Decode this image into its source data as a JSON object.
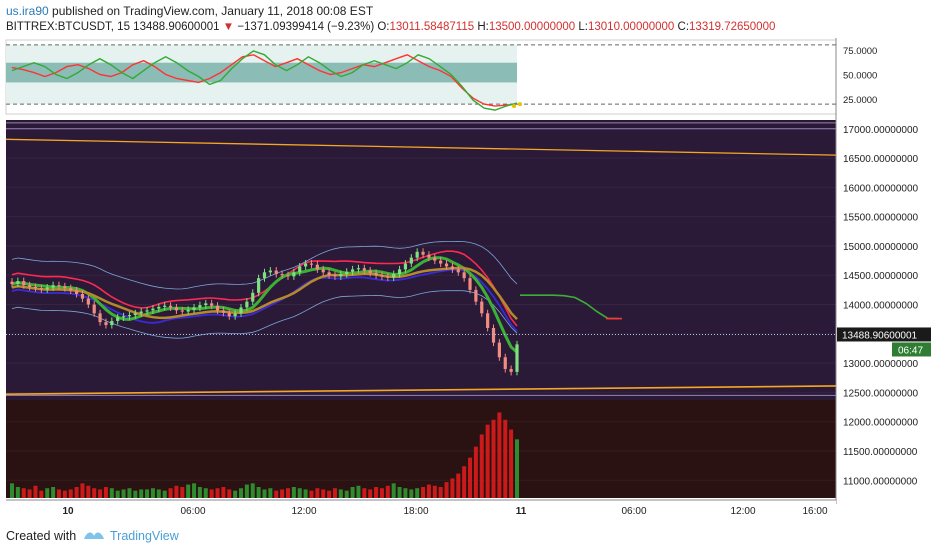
{
  "header": {
    "user": "us.ira90",
    "published": "published on TradingView.com, January 11, 2018 00:08 EST",
    "symbol": "BITTREX:BTCUSDT, 15",
    "price": "13488.90600001",
    "change_arrow": "▼",
    "change": "−1371.09399414 (−9.23%)",
    "o_label": "O:",
    "o_value": "13011.58487115",
    "h_label": "H:",
    "h_value": "13500.00000000",
    "l_label": "L:",
    "l_value": "13010.00000000",
    "c_label": "C:",
    "c_value": "13319.72650000"
  },
  "footer": {
    "created": "Created with",
    "brand": "TradingView"
  },
  "colors": {
    "panel_bg": "#2a1a38",
    "volume_bg": "#2a1212",
    "candle_up": "#7ee07e",
    "candle_down": "#f08c80",
    "trend": "#f5a623",
    "price_tag": "#1a1a1a",
    "timer_tag": "#2e7d32"
  },
  "chart_data": {
    "type": "line",
    "x_ticks": [
      "10",
      "06:00",
      "12:00",
      "18:00",
      "11",
      "06:00",
      "12:00",
      "16:00"
    ],
    "oscillator": {
      "y_ticks": [
        "75.0000",
        "50.0000",
        "25.0000"
      ],
      "ylim": [
        10,
        85
      ],
      "levels": [
        80,
        20
      ],
      "series": [
        {
          "color": "#ff3333",
          "values": [
            57,
            55,
            52,
            48,
            52,
            58,
            60,
            56,
            50,
            48,
            52,
            60,
            64,
            58,
            50,
            46,
            44,
            42,
            46,
            52,
            60,
            68,
            70,
            64,
            58,
            62,
            66,
            60,
            54,
            50,
            52,
            56,
            60,
            58,
            62,
            66,
            70,
            64,
            58,
            54,
            48,
            36,
            26,
            20,
            18,
            19,
            20
          ]
        },
        {
          "color": "#33aa33",
          "values": [
            54,
            58,
            62,
            58,
            50,
            46,
            52,
            60,
            66,
            60,
            52,
            46,
            54,
            62,
            68,
            62,
            54,
            48,
            40,
            44,
            56,
            66,
            74,
            70,
            60,
            54,
            60,
            68,
            62,
            54,
            48,
            52,
            60,
            64,
            60,
            56,
            62,
            70,
            66,
            58,
            50,
            38,
            24,
            16,
            14,
            18,
            21
          ]
        }
      ],
      "last": [
        18,
        20
      ]
    },
    "price": {
      "y_ticks": [
        "17000.00000000",
        "16500.00000000",
        "16000.00000000",
        "15500.00000000",
        "15000.00000000",
        "14500.00000000",
        "14000.00000000",
        "13500.00000000",
        "13000.00000000",
        "12500.00000000",
        "12000.00000000",
        "11500.00000000",
        "11000.00000000"
      ],
      "ylim": [
        10800,
        17150
      ],
      "last_price": "13488.90600001",
      "timer": "06:47",
      "close": [
        14350,
        14400,
        14330,
        14300,
        14280,
        14260,
        14290,
        14330,
        14310,
        14280,
        14240,
        14180,
        14100,
        14000,
        13850,
        13700,
        13650,
        13720,
        13780,
        13800,
        13820,
        13850,
        13880,
        13900,
        13930,
        13960,
        13980,
        13950,
        13900,
        13880,
        13910,
        13950,
        13990,
        14020,
        13980,
        13900,
        13860,
        13800,
        13850,
        13950,
        14050,
        14200,
        14450,
        14550,
        14580,
        14520,
        14500,
        14480,
        14550,
        14650,
        14700,
        14680,
        14600,
        14550,
        14500,
        14480,
        14520,
        14560,
        14600,
        14620,
        14580,
        14540,
        14500,
        14480,
        14460,
        14520,
        14600,
        14700,
        14800,
        14900,
        14850,
        14800,
        14750,
        14700,
        14650,
        14600,
        14550,
        14450,
        14250,
        14050,
        13850,
        13600,
        13350,
        13100,
        12900,
        12850,
        13320
      ]
    },
    "volume": [
      120,
      90,
      80,
      70,
      100,
      60,
      80,
      90,
      70,
      60,
      70,
      90,
      120,
      100,
      80,
      70,
      90,
      80,
      60,
      70,
      80,
      60,
      70,
      70,
      80,
      70,
      60,
      80,
      100,
      90,
      110,
      120,
      90,
      80,
      70,
      80,
      90,
      70,
      60,
      80,
      110,
      120,
      90,
      70,
      80,
      60,
      70,
      80,
      90,
      80,
      70,
      60,
      80,
      70,
      60,
      80,
      70,
      60,
      90,
      100,
      80,
      70,
      90,
      80,
      100,
      120,
      90,
      80,
      70,
      80,
      90,
      110,
      100,
      90,
      130,
      160,
      200,
      260,
      330,
      420,
      520,
      600,
      640,
      700,
      640,
      560,
      480
    ]
  }
}
